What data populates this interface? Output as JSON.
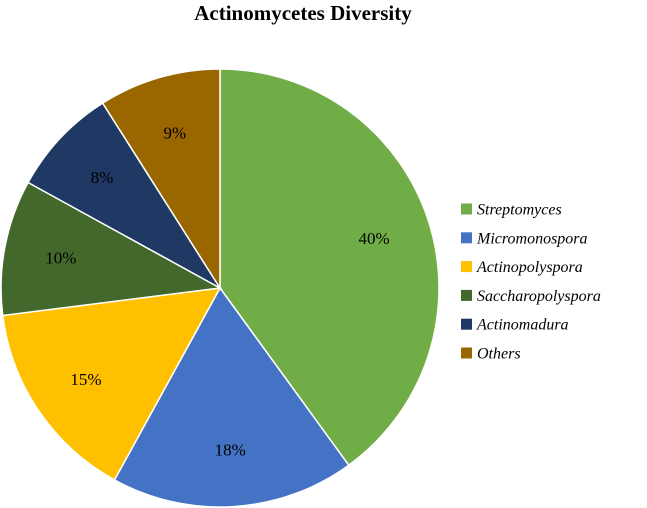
{
  "chart_data": {
    "type": "pie",
    "title": "Actinomycetes Diversity",
    "legend_position": "right",
    "start_angle": "12 o'clock",
    "direction": "clockwise",
    "slices": [
      {
        "label": "Streptomyces",
        "value": 40,
        "display": "40%",
        "color": "#70ad47"
      },
      {
        "label": "Micromonospora",
        "value": 18,
        "display": "18%",
        "color": "#4472c4"
      },
      {
        "label": "Actinopolyspora",
        "value": 15,
        "display": "15%",
        "color": "#ffc000"
      },
      {
        "label": "Saccharopolyspora",
        "value": 10,
        "display": "10%",
        "color": "#43682b"
      },
      {
        "label": "Actinomadura",
        "value": 8,
        "display": "8%",
        "color": "#203864"
      },
      {
        "label": "Others",
        "value": 9,
        "display": "9%",
        "color": "#996600"
      }
    ]
  }
}
